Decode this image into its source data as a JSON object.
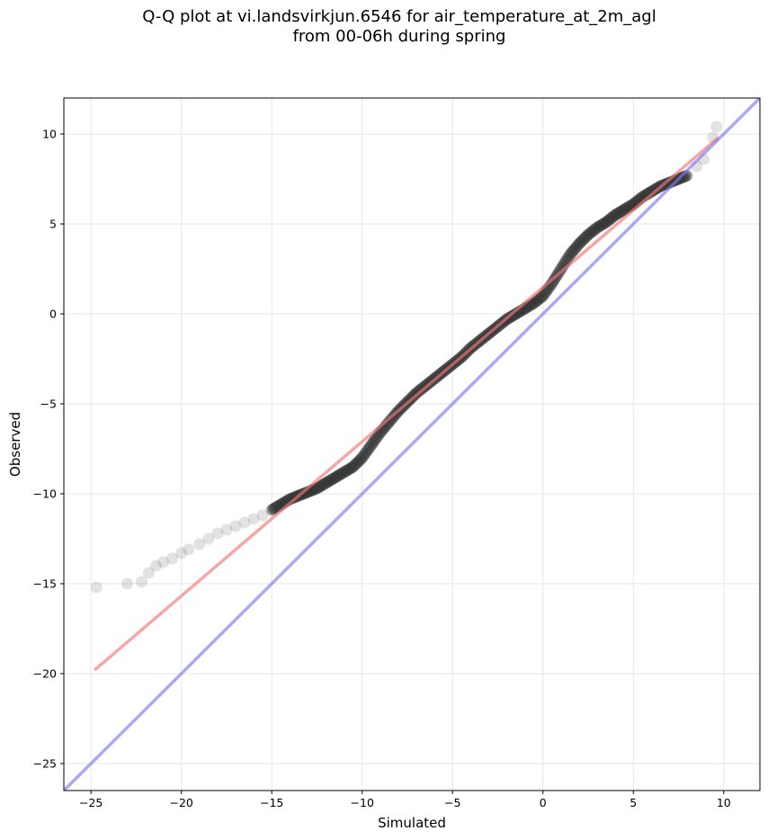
{
  "chart_data": {
    "type": "scatter",
    "title": "Q-Q plot at vi.landsvirkjun.6546 for air_temperature_at_2m_agl",
    "subtitle": "from 00-06h during spring",
    "xlabel": "Simulated",
    "ylabel": "Observed",
    "xlim": [
      -26.5,
      12
    ],
    "ylim": [
      -26.5,
      12
    ],
    "xticks": [
      -25,
      -20,
      -15,
      -10,
      -5,
      0,
      5,
      10
    ],
    "yticks": [
      -25,
      -20,
      -15,
      -10,
      -5,
      0,
      5,
      10
    ],
    "xtick_labels": [
      "−25",
      "−20",
      "−15",
      "−10",
      "−5",
      "0",
      "5",
      "10"
    ],
    "ytick_labels": [
      "−25",
      "−20",
      "−15",
      "−10",
      "−5",
      "0",
      "5",
      "10"
    ],
    "grid": true,
    "colors": {
      "points": "#333333",
      "fit_line": "#f07878",
      "identity_line": "#7b7bf0"
    },
    "identity_line": {
      "x": [
        -26.5,
        12
      ],
      "y": [
        -26.5,
        12
      ]
    },
    "fit_line": {
      "x": [
        -24.8,
        9.7
      ],
      "y": [
        -19.8,
        9.8
      ]
    },
    "quantiles": {
      "x": [
        -24.7,
        -23.0,
        -22.2,
        -21.8,
        -21.4,
        -21.0,
        -20.5,
        -20.0,
        -19.6,
        -19.0,
        -18.5,
        -18.0,
        -17.5,
        -17.0,
        -16.5,
        -16.0,
        -15.5,
        -15.0,
        -14.5,
        -14.0,
        -13.5,
        -13.0,
        -12.5,
        -12.0,
        -11.5,
        -11.0,
        -10.5,
        -10.0,
        -9.5,
        -9.0,
        -8.5,
        -8.0,
        -7.5,
        -7.0,
        -6.5,
        -6.0,
        -5.5,
        -5.0,
        -4.5,
        -4.0,
        -3.5,
        -3.0,
        -2.5,
        -2.0,
        -1.5,
        -1.0,
        -0.5,
        0.0,
        0.5,
        1.0,
        1.5,
        2.0,
        2.5,
        3.0,
        3.5,
        4.0,
        4.5,
        5.0,
        5.5,
        6.0,
        6.5,
        7.0,
        7.5,
        8.0,
        8.5,
        8.9,
        9.4,
        9.6
      ],
      "y": [
        -15.2,
        -15.0,
        -14.9,
        -14.4,
        -14.0,
        -13.8,
        -13.6,
        -13.3,
        -13.1,
        -12.8,
        -12.5,
        -12.2,
        -12.0,
        -11.8,
        -11.6,
        -11.4,
        -11.2,
        -10.9,
        -10.6,
        -10.3,
        -10.1,
        -9.9,
        -9.7,
        -9.4,
        -9.1,
        -8.8,
        -8.5,
        -8.0,
        -7.3,
        -6.6,
        -6.0,
        -5.4,
        -4.9,
        -4.4,
        -4.0,
        -3.6,
        -3.2,
        -2.8,
        -2.4,
        -1.9,
        -1.5,
        -1.1,
        -0.7,
        -0.3,
        0.0,
        0.3,
        0.6,
        1.0,
        1.7,
        2.5,
        3.3,
        3.9,
        4.4,
        4.8,
        5.1,
        5.5,
        5.8,
        6.1,
        6.5,
        6.8,
        7.1,
        7.3,
        7.5,
        7.7,
        8.2,
        8.6,
        9.8,
        10.4
      ]
    }
  }
}
